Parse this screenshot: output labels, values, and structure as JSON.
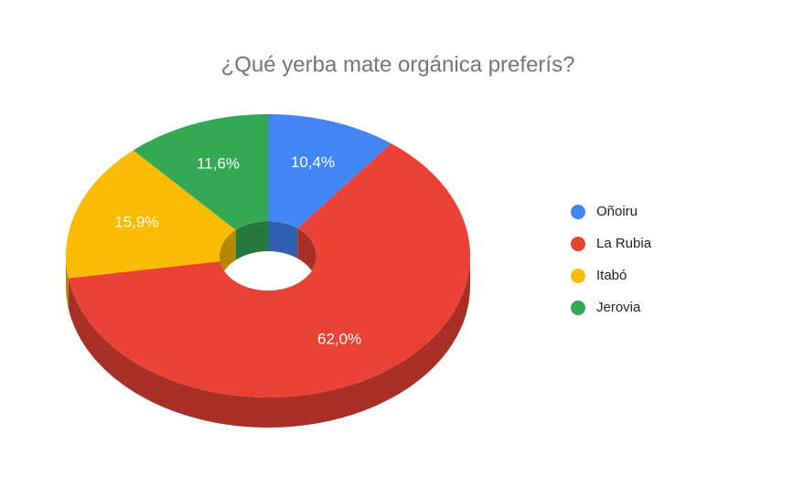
{
  "chart_data": {
    "type": "pie",
    "title": "¿Qué yerba mate orgánica preferís?",
    "categories": [
      "Oñoiru",
      "La Rubia",
      "Itabó",
      "Jerovia"
    ],
    "values": [
      10.4,
      62.0,
      15.9,
      11.6
    ],
    "value_labels": [
      "10,4%",
      "62,0%",
      "15,9%",
      "11,6%"
    ],
    "colors": [
      "#4285f4",
      "#ea4335",
      "#fbbc04",
      "#34a853"
    ],
    "legend": "right"
  }
}
